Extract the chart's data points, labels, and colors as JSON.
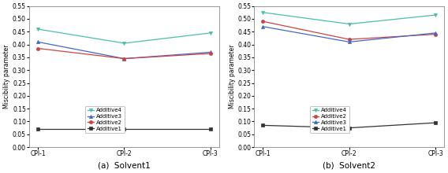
{
  "x_labels": [
    "CPI-1",
    "CPI-2",
    "CPI-3"
  ],
  "solvent1": {
    "Additive4": [
      0.46,
      0.405,
      0.445
    ],
    "Additive3": [
      0.41,
      0.345,
      0.37
    ],
    "Additive2": [
      0.385,
      0.345,
      0.365
    ],
    "Additive1": [
      0.07,
      0.07,
      0.07
    ]
  },
  "solvent2": {
    "Additive4": [
      0.525,
      0.48,
      0.515
    ],
    "Additive2": [
      0.49,
      0.42,
      0.44
    ],
    "Additive3": [
      0.47,
      0.41,
      0.445
    ],
    "Additive1": [
      0.085,
      0.075,
      0.095
    ]
  },
  "colors": {
    "Additive4": "#4DBEAA",
    "Additive3": "#4466CC",
    "Additive2": "#CC4444",
    "Additive1": "#333333"
  },
  "markers": {
    "Additive4": "v",
    "Additive3": "^",
    "Additive2": "o",
    "Additive1": "s"
  },
  "ylim": [
    0.0,
    0.55
  ],
  "yticks": [
    0.0,
    0.05,
    0.1,
    0.15,
    0.2,
    0.25,
    0.3,
    0.35,
    0.4,
    0.45,
    0.5,
    0.55
  ],
  "ylabel": "Miscibility parameter",
  "subtitle_a": "(a)  Solvent1",
  "subtitle_b": "(b)  Solvent2",
  "legend_order_s1": [
    "Additive4",
    "Additive3",
    "Additive2",
    "Additive1"
  ],
  "legend_order_s2": [
    "Additive4",
    "Additive2",
    "Additive3",
    "Additive1"
  ]
}
